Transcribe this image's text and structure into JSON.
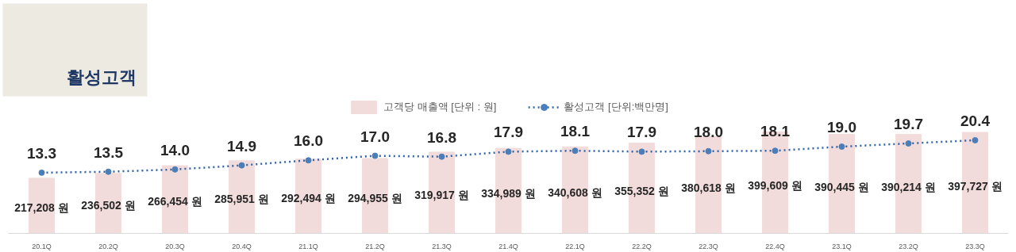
{
  "chart_data": {
    "type": "bar",
    "title": "활성고객",
    "categories": [
      "20.1Q",
      "20.2Q",
      "20.3Q",
      "20.4Q",
      "21.1Q",
      "21.2Q",
      "21.3Q",
      "21.4Q",
      "22.1Q",
      "22.2Q",
      "22.3Q",
      "22.4Q",
      "23.1Q",
      "23.2Q",
      "23.3Q"
    ],
    "series": [
      {
        "name": "고객당 매출액 [단위 : 원]",
        "color": "#f2dcdb",
        "values": [
          217208,
          236502,
          266454,
          285951,
          292494,
          294955,
          319917,
          334989,
          340608,
          355352,
          380618,
          399609,
          390445,
          390214,
          397727
        ],
        "value_labels": [
          "217,208 원",
          "236,502 원",
          "266,454 원",
          "285,951 원",
          "292,494 원",
          "294,955 원",
          "319,917 원",
          "334,989 원",
          "340,608 원",
          "355,352 원",
          "380,618 원",
          "399,609 원",
          "390,445 원",
          "390,214 원",
          "397,727 원"
        ]
      },
      {
        "name": "활성고객 [단위:백만명]",
        "type": "line",
        "axis": "y2",
        "color": "#2e64a8",
        "marker": "circle",
        "line_style": "dotted",
        "values": [
          13.3,
          13.5,
          14.0,
          14.9,
          16.0,
          17.0,
          16.8,
          17.9,
          18.1,
          17.9,
          18.0,
          18.1,
          19.0,
          19.7,
          20.4
        ],
        "value_labels": [
          "13.3",
          "13.5",
          "14.0",
          "14.9",
          "16.0",
          "17.0",
          "16.8",
          "17.9",
          "18.1",
          "17.9",
          "18.0",
          "18.1",
          "19.0",
          "19.7",
          "20.4"
        ]
      }
    ],
    "tick_labels": "x",
    "grid": false,
    "legend": "top"
  }
}
